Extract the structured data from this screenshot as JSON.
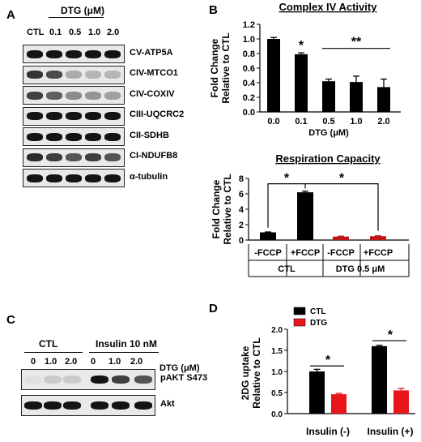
{
  "figure": {
    "panel_a": {
      "letter": "A",
      "treatment_header": "DTG (μM)",
      "lanes": [
        "CTL",
        "0.1",
        "0.5",
        "1.0",
        "2.0"
      ],
      "blots": [
        {
          "label": "CV-ATP5A",
          "intensity": [
            1.0,
            1.0,
            1.0,
            1.0,
            1.0
          ]
        },
        {
          "label": "CIV-MTCO1",
          "intensity": [
            0.85,
            0.75,
            0.3,
            0.25,
            0.25
          ]
        },
        {
          "label": "CIV-COXIV",
          "intensity": [
            0.8,
            0.65,
            0.45,
            0.4,
            0.35
          ]
        },
        {
          "label": "CIII-UQCRC2",
          "intensity": [
            1.0,
            1.0,
            1.0,
            1.0,
            1.0
          ]
        },
        {
          "label": "CII-SDHB",
          "intensity": [
            1.0,
            1.0,
            1.0,
            1.0,
            1.0
          ]
        },
        {
          "label": "CI-NDUFB8",
          "intensity": [
            0.9,
            0.8,
            0.7,
            0.8,
            0.7
          ]
        },
        {
          "label": "α-tubulin",
          "intensity": [
            1.0,
            1.0,
            1.0,
            1.0,
            1.0
          ]
        }
      ]
    },
    "panel_c": {
      "letter": "C",
      "group_labels": [
        "CTL",
        "Insulin 10 nM"
      ],
      "dose_header": "DTG (μM)",
      "lanes": [
        "0",
        "1.0",
        "2.0",
        "0",
        "1.0",
        "2.0"
      ],
      "blots": [
        {
          "label": "pAKT S473",
          "intensity": [
            0.05,
            0.15,
            0.15,
            1.0,
            0.8,
            0.7
          ]
        },
        {
          "label": "Akt",
          "intensity": [
            1.0,
            1.0,
            1.0,
            1.0,
            1.0,
            1.0
          ]
        }
      ]
    },
    "panel_b_letter": "B",
    "panel_d_letter": "D"
  },
  "chart_data": [
    {
      "panel": "B-top",
      "type": "bar",
      "title": "Complex IV Activity",
      "ylabel_lines": [
        "Fold Change",
        "Relative to CTL"
      ],
      "xlabel": "DTG (μM)",
      "categories": [
        "0.0",
        "0.1",
        "0.5",
        "1.0",
        "2.0"
      ],
      "values": [
        1.0,
        0.79,
        0.42,
        0.41,
        0.34
      ],
      "errors": [
        0.02,
        0.02,
        0.03,
        0.08,
        0.11
      ],
      "ylim": [
        0,
        1.2
      ],
      "yticks": [
        "0.0",
        "0.2",
        "0.4",
        "0.6",
        "0.8",
        "1.0",
        "1.2"
      ],
      "color": "#000000",
      "annotations": [
        {
          "text": "*",
          "over": "0.1"
        },
        {
          "text": "**",
          "bracket": [
            "0.5",
            "2.0"
          ]
        }
      ]
    },
    {
      "panel": "B-bottom",
      "type": "bar",
      "title": "Respiration Capacity",
      "ylabel_lines": [
        "Fold Change",
        "Relative to CTL"
      ],
      "categories": [
        "-FCCP",
        "+FCCP",
        "-FCCP",
        "+FCCP"
      ],
      "groups": [
        "CTL",
        "DTG 0.5 μM"
      ],
      "values": [
        1.0,
        6.2,
        0.45,
        0.5
      ],
      "errors": [
        0.05,
        0.15,
        0.05,
        0.05
      ],
      "colors": [
        "#000000",
        "#000000",
        "#c0151b",
        "#c0151b"
      ],
      "ylim": [
        0,
        8
      ],
      "yticks": [
        "0",
        "2",
        "4",
        "6",
        "8"
      ],
      "annotations": [
        {
          "text": "*",
          "bracket": [
            "-FCCP",
            "+FCCP"
          ]
        },
        {
          "text": "*",
          "bracket": [
            "+FCCP",
            "+FCCP (DTG)"
          ]
        }
      ]
    },
    {
      "panel": "D",
      "type": "bar",
      "ylabel_lines": [
        "2DG uptake",
        "Relative to CTL"
      ],
      "categories": [
        "Insulin (-)",
        "Insulin (+)"
      ],
      "series": [
        {
          "name": "CTL",
          "values": [
            1.0,
            1.6
          ],
          "errors": [
            0.05,
            0.02
          ],
          "color": "#000000"
        },
        {
          "name": "DTG",
          "values": [
            0.46,
            0.55
          ],
          "errors": [
            0.02,
            0.05
          ],
          "color": "#e8151b"
        }
      ],
      "ylim": [
        0,
        2.0
      ],
      "yticks": [
        "0.0",
        "0.5",
        "1.0",
        "1.5",
        "2.0"
      ],
      "legend": "top-left",
      "annotations": [
        {
          "text": "*"
        },
        {
          "text": "*"
        }
      ]
    }
  ]
}
